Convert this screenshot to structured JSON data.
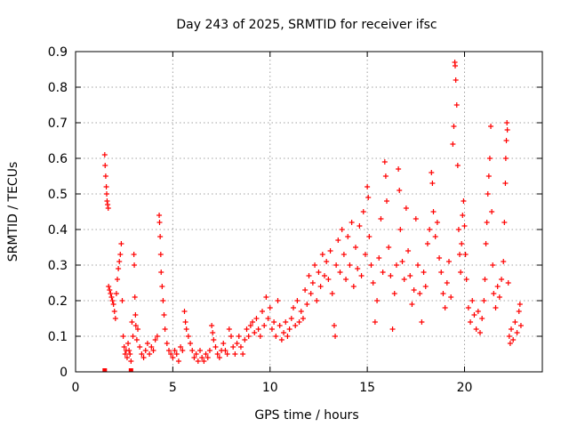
{
  "chart_data": {
    "type": "scatter",
    "title": "Day 243 of 2025, SRMTID for receiver ifsc",
    "xlabel": "GPS time / hours",
    "ylabel": "SRMTID / TECUs",
    "xlim": [
      0,
      24
    ],
    "ylim": [
      0,
      0.9
    ],
    "x_ticks": [
      0,
      5,
      10,
      15,
      20
    ],
    "x_tick_labels": [
      "0",
      "5",
      "10",
      "15",
      "20"
    ],
    "y_ticks": [
      0,
      0.1,
      0.2,
      0.3,
      0.4,
      0.5,
      0.6,
      0.7,
      0.8,
      0.9
    ],
    "y_tick_labels": [
      "0",
      "0.1",
      "0.2",
      "0.3",
      "0.4",
      "0.5",
      "0.6",
      "0.7",
      "0.8",
      "0.9"
    ],
    "grid": true,
    "marker": "plus",
    "color": "#ff0000",
    "zero_markers": [
      [
        1.5,
        0
      ],
      [
        2.85,
        0
      ]
    ],
    "series": [
      {
        "name": "SRMTID",
        "points": [
          [
            1.5,
            0.61
          ],
          [
            1.52,
            0.58
          ],
          [
            1.55,
            0.55
          ],
          [
            1.58,
            0.52
          ],
          [
            1.6,
            0.5
          ],
          [
            1.62,
            0.48
          ],
          [
            1.65,
            0.47
          ],
          [
            1.68,
            0.46
          ],
          [
            1.7,
            0.24
          ],
          [
            1.75,
            0.23
          ],
          [
            1.8,
            0.22
          ],
          [
            1.85,
            0.21
          ],
          [
            1.9,
            0.2
          ],
          [
            1.95,
            0.19
          ],
          [
            2.0,
            0.17
          ],
          [
            2.05,
            0.15
          ],
          [
            2.1,
            0.22
          ],
          [
            2.15,
            0.26
          ],
          [
            2.2,
            0.29
          ],
          [
            2.25,
            0.31
          ],
          [
            2.3,
            0.33
          ],
          [
            2.35,
            0.36
          ],
          [
            2.4,
            0.2
          ],
          [
            2.45,
            0.1
          ],
          [
            2.5,
            0.07
          ],
          [
            2.55,
            0.05
          ],
          [
            2.6,
            0.06
          ],
          [
            2.65,
            0.04
          ],
          [
            2.7,
            0.08
          ],
          [
            2.75,
            0.06
          ],
          [
            2.8,
            0.05
          ],
          [
            2.85,
            0.03
          ],
          [
            2.9,
            0.14
          ],
          [
            2.95,
            0.1
          ],
          [
            3.0,
            0.33
          ],
          [
            3.02,
            0.3
          ],
          [
            3.05,
            0.21
          ],
          [
            3.08,
            0.16
          ],
          [
            3.1,
            0.13
          ],
          [
            3.15,
            0.09
          ],
          [
            3.2,
            0.12
          ],
          [
            3.3,
            0.07
          ],
          [
            3.4,
            0.05
          ],
          [
            3.5,
            0.04
          ],
          [
            3.6,
            0.06
          ],
          [
            3.7,
            0.08
          ],
          [
            3.8,
            0.05
          ],
          [
            3.9,
            0.07
          ],
          [
            4.0,
            0.06
          ],
          [
            4.1,
            0.09
          ],
          [
            4.2,
            0.1
          ],
          [
            4.3,
            0.44
          ],
          [
            4.32,
            0.42
          ],
          [
            4.35,
            0.38
          ],
          [
            4.38,
            0.33
          ],
          [
            4.4,
            0.28
          ],
          [
            4.45,
            0.24
          ],
          [
            4.5,
            0.2
          ],
          [
            4.55,
            0.16
          ],
          [
            4.6,
            0.12
          ],
          [
            4.7,
            0.08
          ],
          [
            4.8,
            0.06
          ],
          [
            4.9,
            0.05
          ],
          [
            5.0,
            0.04
          ],
          [
            5.1,
            0.06
          ],
          [
            5.2,
            0.05
          ],
          [
            5.3,
            0.03
          ],
          [
            5.4,
            0.07
          ],
          [
            5.5,
            0.06
          ],
          [
            5.6,
            0.17
          ],
          [
            5.65,
            0.14
          ],
          [
            5.7,
            0.12
          ],
          [
            5.8,
            0.1
          ],
          [
            5.9,
            0.08
          ],
          [
            6.0,
            0.06
          ],
          [
            6.1,
            0.04
          ],
          [
            6.2,
            0.05
          ],
          [
            6.3,
            0.03
          ],
          [
            6.4,
            0.06
          ],
          [
            6.5,
            0.04
          ],
          [
            6.6,
            0.03
          ],
          [
            6.7,
            0.05
          ],
          [
            6.8,
            0.04
          ],
          [
            6.9,
            0.06
          ],
          [
            7.0,
            0.13
          ],
          [
            7.05,
            0.11
          ],
          [
            7.1,
            0.09
          ],
          [
            7.2,
            0.07
          ],
          [
            7.3,
            0.05
          ],
          [
            7.4,
            0.04
          ],
          [
            7.5,
            0.06
          ],
          [
            7.6,
            0.08
          ],
          [
            7.7,
            0.06
          ],
          [
            7.8,
            0.05
          ],
          [
            7.9,
            0.12
          ],
          [
            8.0,
            0.1
          ],
          [
            8.1,
            0.07
          ],
          [
            8.2,
            0.05
          ],
          [
            8.3,
            0.08
          ],
          [
            8.4,
            0.1
          ],
          [
            8.5,
            0.07
          ],
          [
            8.6,
            0.05
          ],
          [
            8.7,
            0.09
          ],
          [
            8.8,
            0.12
          ],
          [
            8.9,
            0.1
          ],
          [
            9.0,
            0.13
          ],
          [
            9.1,
            0.14
          ],
          [
            9.2,
            0.11
          ],
          [
            9.3,
            0.15
          ],
          [
            9.4,
            0.12
          ],
          [
            9.5,
            0.1
          ],
          [
            9.6,
            0.17
          ],
          [
            9.7,
            0.13
          ],
          [
            9.8,
            0.21
          ],
          [
            9.9,
            0.15
          ],
          [
            10.0,
            0.18
          ],
          [
            10.1,
            0.12
          ],
          [
            10.2,
            0.14
          ],
          [
            10.3,
            0.1
          ],
          [
            10.4,
            0.2
          ],
          [
            10.5,
            0.13
          ],
          [
            10.6,
            0.09
          ],
          [
            10.7,
            0.11
          ],
          [
            10.8,
            0.14
          ],
          [
            10.9,
            0.1
          ],
          [
            11.0,
            0.12
          ],
          [
            11.1,
            0.15
          ],
          [
            11.2,
            0.18
          ],
          [
            11.3,
            0.13
          ],
          [
            11.4,
            0.2
          ],
          [
            11.5,
            0.14
          ],
          [
            11.6,
            0.17
          ],
          [
            11.7,
            0.15
          ],
          [
            11.8,
            0.23
          ],
          [
            11.9,
            0.19
          ],
          [
            12.0,
            0.27
          ],
          [
            12.1,
            0.22
          ],
          [
            12.2,
            0.25
          ],
          [
            12.3,
            0.3
          ],
          [
            12.4,
            0.2
          ],
          [
            12.5,
            0.28
          ],
          [
            12.6,
            0.24
          ],
          [
            12.7,
            0.33
          ],
          [
            12.8,
            0.27
          ],
          [
            12.9,
            0.31
          ],
          [
            13.0,
            0.26
          ],
          [
            13.1,
            0.34
          ],
          [
            13.2,
            0.22
          ],
          [
            13.3,
            0.13
          ],
          [
            13.35,
            0.1
          ],
          [
            13.4,
            0.3
          ],
          [
            13.5,
            0.37
          ],
          [
            13.6,
            0.28
          ],
          [
            13.7,
            0.4
          ],
          [
            13.8,
            0.33
          ],
          [
            13.9,
            0.26
          ],
          [
            14.0,
            0.38
          ],
          [
            14.1,
            0.3
          ],
          [
            14.2,
            0.42
          ],
          [
            14.3,
            0.24
          ],
          [
            14.4,
            0.35
          ],
          [
            14.5,
            0.29
          ],
          [
            14.6,
            0.41
          ],
          [
            14.7,
            0.27
          ],
          [
            14.8,
            0.45
          ],
          [
            14.9,
            0.33
          ],
          [
            15.0,
            0.52
          ],
          [
            15.05,
            0.49
          ],
          [
            15.1,
            0.38
          ],
          [
            15.2,
            0.3
          ],
          [
            15.3,
            0.25
          ],
          [
            15.4,
            0.14
          ],
          [
            15.5,
            0.2
          ],
          [
            15.6,
            0.32
          ],
          [
            15.7,
            0.43
          ],
          [
            15.8,
            0.28
          ],
          [
            15.9,
            0.59
          ],
          [
            15.95,
            0.55
          ],
          [
            16.0,
            0.48
          ],
          [
            16.1,
            0.35
          ],
          [
            16.2,
            0.27
          ],
          [
            16.3,
            0.12
          ],
          [
            16.4,
            0.22
          ],
          [
            16.5,
            0.3
          ],
          [
            16.6,
            0.57
          ],
          [
            16.65,
            0.51
          ],
          [
            16.7,
            0.4
          ],
          [
            16.8,
            0.31
          ],
          [
            16.9,
            0.26
          ],
          [
            17.0,
            0.46
          ],
          [
            17.1,
            0.34
          ],
          [
            17.2,
            0.27
          ],
          [
            17.3,
            0.19
          ],
          [
            17.4,
            0.23
          ],
          [
            17.5,
            0.43
          ],
          [
            17.6,
            0.3
          ],
          [
            17.7,
            0.22
          ],
          [
            17.8,
            0.14
          ],
          [
            17.9,
            0.28
          ],
          [
            18.0,
            0.24
          ],
          [
            18.1,
            0.36
          ],
          [
            18.2,
            0.4
          ],
          [
            18.3,
            0.56
          ],
          [
            18.35,
            0.53
          ],
          [
            18.4,
            0.45
          ],
          [
            18.5,
            0.38
          ],
          [
            18.6,
            0.42
          ],
          [
            18.7,
            0.32
          ],
          [
            18.8,
            0.28
          ],
          [
            18.9,
            0.22
          ],
          [
            19.0,
            0.18
          ],
          [
            19.1,
            0.25
          ],
          [
            19.2,
            0.31
          ],
          [
            19.3,
            0.21
          ],
          [
            19.4,
            0.64
          ],
          [
            19.45,
            0.69
          ],
          [
            19.5,
            0.87
          ],
          [
            19.52,
            0.86
          ],
          [
            19.55,
            0.82
          ],
          [
            19.6,
            0.75
          ],
          [
            19.65,
            0.58
          ],
          [
            19.7,
            0.4
          ],
          [
            19.75,
            0.33
          ],
          [
            19.8,
            0.28
          ],
          [
            19.85,
            0.36
          ],
          [
            19.9,
            0.44
          ],
          [
            19.95,
            0.48
          ],
          [
            20.0,
            0.41
          ],
          [
            20.05,
            0.33
          ],
          [
            20.1,
            0.26
          ],
          [
            20.2,
            0.18
          ],
          [
            20.3,
            0.14
          ],
          [
            20.4,
            0.2
          ],
          [
            20.5,
            0.16
          ],
          [
            20.6,
            0.12
          ],
          [
            20.7,
            0.17
          ],
          [
            20.8,
            0.11
          ],
          [
            20.9,
            0.15
          ],
          [
            21.0,
            0.2
          ],
          [
            21.05,
            0.26
          ],
          [
            21.1,
            0.36
          ],
          [
            21.15,
            0.42
          ],
          [
            21.2,
            0.5
          ],
          [
            21.25,
            0.55
          ],
          [
            21.3,
            0.6
          ],
          [
            21.35,
            0.69
          ],
          [
            21.4,
            0.45
          ],
          [
            21.45,
            0.3
          ],
          [
            21.5,
            0.22
          ],
          [
            21.6,
            0.18
          ],
          [
            21.7,
            0.24
          ],
          [
            21.8,
            0.21
          ],
          [
            21.9,
            0.26
          ],
          [
            22.0,
            0.31
          ],
          [
            22.05,
            0.42
          ],
          [
            22.1,
            0.53
          ],
          [
            22.12,
            0.6
          ],
          [
            22.15,
            0.65
          ],
          [
            22.18,
            0.7
          ],
          [
            22.2,
            0.68
          ],
          [
            22.25,
            0.25
          ],
          [
            22.3,
            0.1
          ],
          [
            22.35,
            0.08
          ],
          [
            22.4,
            0.12
          ],
          [
            22.5,
            0.09
          ],
          [
            22.6,
            0.14
          ],
          [
            22.7,
            0.11
          ],
          [
            22.8,
            0.17
          ],
          [
            22.85,
            0.19
          ],
          [
            22.9,
            0.13
          ]
        ]
      }
    ]
  }
}
